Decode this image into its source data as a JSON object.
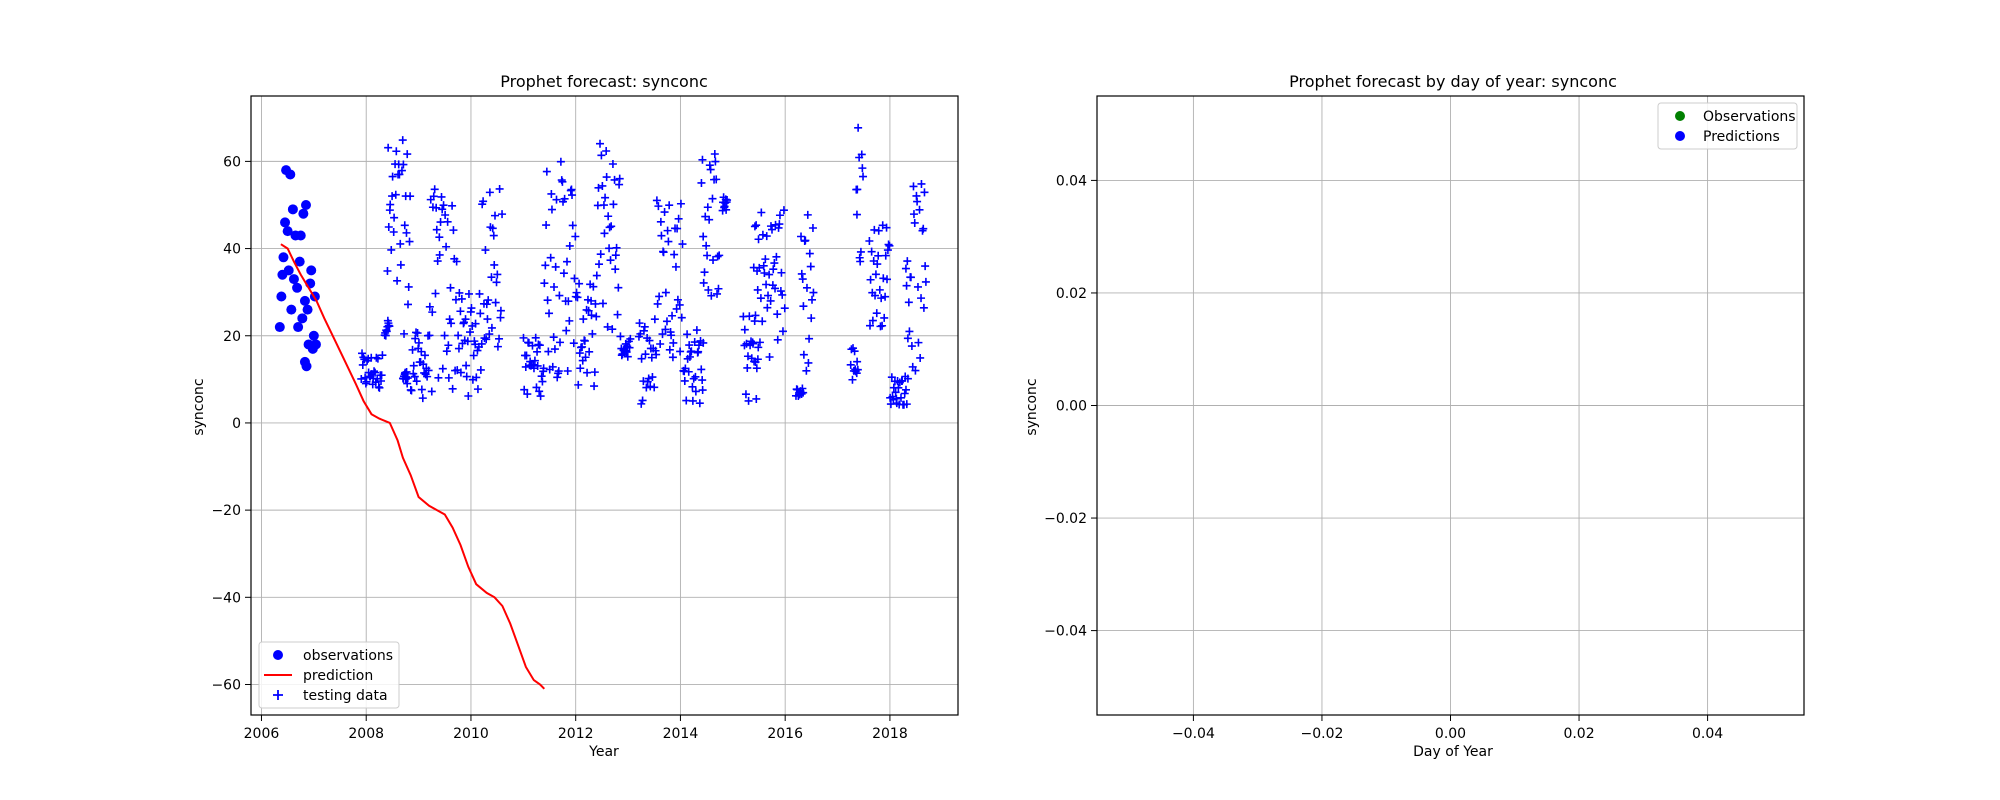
{
  "chart_data": [
    {
      "type": "scatter",
      "title": "Prophet forecast: synconc",
      "xlabel": "Year",
      "ylabel": "synconc",
      "xlim": [
        2005.8,
        2019.3
      ],
      "ylim": [
        -67,
        75
      ],
      "xticks": [
        "2006",
        "2008",
        "2010",
        "2012",
        "2014",
        "2016",
        "2018"
      ],
      "yticks": [
        "60",
        "40",
        "20",
        "0",
        "−20",
        "−40",
        "−60"
      ],
      "grid": true,
      "legend_position": "lower-left",
      "legend": [
        "observations",
        "prediction",
        "testing data"
      ],
      "colors": {
        "observations": "#0000ff",
        "prediction": "#ff0000",
        "testing": "#0000ff"
      },
      "series": [
        {
          "name": "observations",
          "type": "scatter",
          "marker": "circle",
          "x": [
            2006.35,
            2006.38,
            2006.4,
            2006.42,
            2006.45,
            2006.47,
            2006.5,
            2006.52,
            2006.55,
            2006.57,
            2006.6,
            2006.62,
            2006.65,
            2006.68,
            2006.7,
            2006.73,
            2006.75,
            2006.78,
            2006.8,
            2006.83,
            2006.85,
            2006.88,
            2006.9,
            2006.93,
            2006.95,
            2006.98,
            2007.0,
            2007.02,
            2007.04,
            2006.83,
            2006.86
          ],
          "y": [
            22,
            29,
            34,
            38,
            46,
            58,
            44,
            35,
            57,
            26,
            49,
            33,
            43,
            31,
            22,
            37,
            43,
            24,
            48,
            28,
            50,
            26,
            18,
            32,
            35,
            17,
            20,
            29,
            18,
            14,
            13
          ]
        },
        {
          "name": "prediction",
          "type": "line",
          "x": [
            2006.37,
            2006.5,
            2006.62,
            2006.75,
            2006.9,
            2007.05,
            2007.2,
            2007.4,
            2007.6,
            2007.8,
            2007.95,
            2008.1,
            2008.25,
            2008.45,
            2008.6,
            2008.7,
            2008.85,
            2009.0,
            2009.2,
            2009.35,
            2009.5,
            2009.65,
            2009.8,
            2009.95,
            2010.1,
            2010.3,
            2010.45,
            2010.6,
            2010.75,
            2010.9,
            2011.05,
            2011.2,
            2011.32,
            2011.4
          ],
          "y": [
            41,
            40,
            37,
            34,
            31,
            28,
            24,
            19,
            14,
            9,
            5,
            2,
            1,
            0,
            -4,
            -8,
            -12,
            -17,
            -19,
            -20,
            -21,
            -24,
            -28,
            -33,
            -37,
            -39,
            -40,
            -42,
            -46,
            -51,
            -56,
            -59,
            -60,
            -61
          ]
        },
        {
          "name": "testing data",
          "type": "scatter",
          "marker": "plus",
          "segments": [
            {
              "x0": 2007.9,
              "x1": 2008.32,
              "ymin": 7,
              "ymax": 16
            },
            {
              "x0": 2008.35,
              "x1": 2008.45,
              "ymin": 20,
              "ymax": 24
            },
            {
              "x0": 2008.4,
              "x1": 2008.85,
              "ymin": 20,
              "ymax": 65
            },
            {
              "x0": 2008.7,
              "x1": 2008.8,
              "ymin": 9,
              "ymax": 12
            },
            {
              "x0": 2008.85,
              "x1": 2009.2,
              "ymin": 5,
              "ymax": 21
            },
            {
              "x0": 2009.2,
              "x1": 2009.75,
              "ymin": 5,
              "ymax": 54
            },
            {
              "x0": 2009.75,
              "x1": 2010.2,
              "ymin": 6,
              "ymax": 30
            },
            {
              "x0": 2010.2,
              "x1": 2010.6,
              "ymin": 15,
              "ymax": 56
            },
            {
              "x0": 2011.0,
              "x1": 2011.4,
              "ymin": 6,
              "ymax": 20
            },
            {
              "x0": 2011.4,
              "x1": 2012.0,
              "ymin": 10,
              "ymax": 61
            },
            {
              "x0": 2012.0,
              "x1": 2012.4,
              "ymin": 8,
              "ymax": 32
            },
            {
              "x0": 2012.4,
              "x1": 2012.85,
              "ymin": 18,
              "ymax": 66
            },
            {
              "x0": 2012.85,
              "x1": 2013.05,
              "ymin": 15,
              "ymax": 20
            },
            {
              "x0": 2013.2,
              "x1": 2013.55,
              "ymin": 4,
              "ymax": 25
            },
            {
              "x0": 2013.55,
              "x1": 2014.05,
              "ymin": 15,
              "ymax": 54
            },
            {
              "x0": 2014.05,
              "x1": 2014.45,
              "ymin": 4,
              "ymax": 22
            },
            {
              "x0": 2014.4,
              "x1": 2014.75,
              "ymin": 27,
              "ymax": 63
            },
            {
              "x0": 2014.8,
              "x1": 2014.9,
              "ymin": 48,
              "ymax": 52
            },
            {
              "x0": 2015.2,
              "x1": 2015.5,
              "ymin": 4,
              "ymax": 25
            },
            {
              "x0": 2015.4,
              "x1": 2016.0,
              "ymin": 15,
              "ymax": 50
            },
            {
              "x0": 2016.2,
              "x1": 2016.35,
              "ymin": 6,
              "ymax": 8
            },
            {
              "x0": 2016.3,
              "x1": 2016.55,
              "ymin": 9,
              "ymax": 53
            },
            {
              "x0": 2017.25,
              "x1": 2017.4,
              "ymin": 9,
              "ymax": 18
            },
            {
              "x0": 2017.35,
              "x1": 2017.5,
              "ymin": 34,
              "ymax": 69
            },
            {
              "x0": 2017.6,
              "x1": 2018.0,
              "ymin": 22,
              "ymax": 46
            },
            {
              "x0": 2018.0,
              "x1": 2018.35,
              "ymin": 4,
              "ymax": 11
            },
            {
              "x0": 2018.3,
              "x1": 2018.7,
              "ymin": 10,
              "ymax": 55
            }
          ]
        }
      ]
    },
    {
      "type": "scatter",
      "title": "Prophet forecast by day of year: synconc",
      "xlabel": "Day of Year",
      "ylabel": "synconc",
      "xlim": [
        -0.055,
        0.055
      ],
      "ylim": [
        -0.055,
        0.055
      ],
      "xticks": [
        "−0.04",
        "−0.02",
        "0.00",
        "0.02",
        "0.04"
      ],
      "yticks": [
        "0.04",
        "0.02",
        "0.00",
        "−0.02",
        "−0.04"
      ],
      "grid": true,
      "legend_position": "upper-right",
      "legend": [
        "Observations",
        "Predictions"
      ],
      "colors": {
        "Observations": "#008000",
        "Predictions": "#0000ff"
      },
      "series": [
        {
          "name": "Observations",
          "x": [],
          "y": []
        },
        {
          "name": "Predictions",
          "x": [],
          "y": []
        }
      ]
    }
  ]
}
